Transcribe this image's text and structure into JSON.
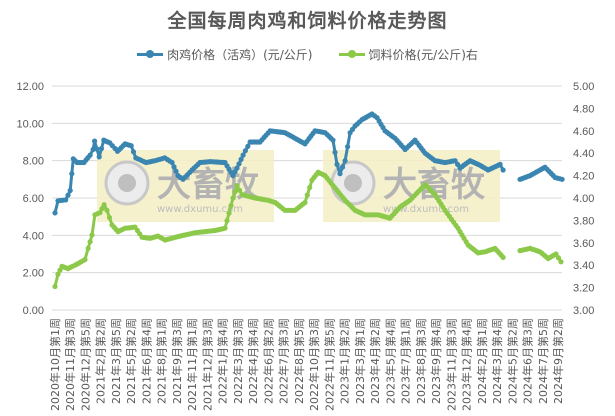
{
  "chart_data": {
    "type": "line",
    "title": "全国每周肉鸡和饲料价格走势图",
    "xlabel": "",
    "ylabel": "",
    "y_left": {
      "ticks": [
        "0.00",
        "2.00",
        "4.00",
        "6.00",
        "8.00",
        "10.00",
        "12.00"
      ],
      "range": [
        0,
        12
      ]
    },
    "y_right": {
      "ticks": [
        "3.00",
        "3.20",
        "3.40",
        "3.60",
        "3.80",
        "4.00",
        "4.20",
        "4.40",
        "4.60",
        "4.80",
        "5.00"
      ],
      "range": [
        3,
        5
      ]
    },
    "grid": true,
    "legend_position": "top",
    "categories": [
      "2020年10月第1周",
      "2020年11月第3周",
      "2020年12月第5周",
      "2021年2月第2周",
      "2021年3月第5周",
      "2021年5月第2周",
      "2021年6月第4周",
      "2021年8月第1周",
      "2021年9月第3周",
      "2021年11月第1周",
      "2021年12月第3周",
      "2022年1月第4周",
      "2022年3月第3周",
      "2022年4月第4周",
      "2022年6月第2周",
      "2022年7月第3周",
      "2022年8月第5周",
      "2022年10月第3周",
      "2022年11月第5周",
      "2023年1月第2周",
      "2023年3月第1周",
      "2023年4月第2周",
      "2023年5月第4周",
      "2023年7月第1周",
      "2023年8月第3周",
      "2023年9月第4周",
      "2023年11月第3周",
      "2023年12月第4周",
      "2024年2月第1周",
      "2024年3月第4周",
      "2024年5月第2周",
      "2024年6月第3周",
      "2024年7月第5周",
      "2024年9月第2周"
    ],
    "series": [
      {
        "name": "肉鸡价格（活鸡）(元/公斤)",
        "axis": "left",
        "color": "#3b86b0",
        "points_note": "[position in category units, value]; null splits segments",
        "points": [
          [
            0,
            5.2
          ],
          [
            0.2,
            5.85
          ],
          [
            0.7,
            5.9
          ],
          [
            1.0,
            6.4
          ],
          [
            1.1,
            7.3
          ],
          [
            1.2,
            8.1
          ],
          [
            1.45,
            7.9
          ],
          [
            1.9,
            7.9
          ],
          [
            2.3,
            8.3
          ],
          [
            2.5,
            8.6
          ],
          [
            2.6,
            9.05
          ],
          [
            2.9,
            8.2
          ],
          [
            3.2,
            9.1
          ],
          [
            3.6,
            8.95
          ],
          [
            4.1,
            8.5
          ],
          [
            4.6,
            8.9
          ],
          [
            5.0,
            8.8
          ],
          [
            5.3,
            8.15
          ],
          [
            5.97,
            7.9
          ],
          [
            6.56,
            8.0
          ],
          [
            7.2,
            8.15
          ],
          [
            7.68,
            7.9
          ],
          [
            8.07,
            7.2
          ],
          [
            8.4,
            7.0
          ],
          [
            8.99,
            7.5
          ],
          [
            9.51,
            7.9
          ],
          [
            10.17,
            7.95
          ],
          [
            11.15,
            7.9
          ],
          [
            11.68,
            7.2
          ],
          [
            11.94,
            7.6
          ],
          [
            12.34,
            8.3
          ],
          [
            12.8,
            9.0
          ],
          [
            13.45,
            9.0
          ],
          [
            14.11,
            9.6
          ],
          [
            15.09,
            9.5
          ],
          [
            15.75,
            9.2
          ],
          [
            16.4,
            8.9
          ],
          [
            17.06,
            9.6
          ],
          [
            17.72,
            9.5
          ],
          [
            18.24,
            9.1
          ],
          [
            18.5,
            7.8
          ],
          [
            18.7,
            7.3
          ],
          [
            19.03,
            8.0
          ],
          [
            19.36,
            9.5
          ],
          [
            19.68,
            9.85
          ],
          [
            20.14,
            10.2
          ],
          [
            20.8,
            10.5
          ],
          [
            21.13,
            10.3
          ],
          [
            21.65,
            9.6
          ],
          [
            22.31,
            9.2
          ],
          [
            22.97,
            8.6
          ],
          [
            23.62,
            9.1
          ],
          [
            24.28,
            8.4
          ],
          [
            24.93,
            8.0
          ],
          [
            25.59,
            7.9
          ],
          [
            26.25,
            8.0
          ],
          [
            26.57,
            7.6
          ],
          [
            27.23,
            8.0
          ],
          [
            27.89,
            7.75
          ],
          [
            28.41,
            7.5
          ],
          [
            29.2,
            7.8
          ],
          [
            29.4,
            7.5
          ],
          null,
          [
            30.51,
            7.0
          ],
          [
            31.17,
            7.2
          ],
          [
            32.15,
            7.65
          ],
          [
            32.81,
            7.1
          ],
          [
            33.27,
            7.0
          ]
        ]
      },
      {
        "name": "饲料价格(元/公斤)右",
        "axis": "right",
        "color": "#8cc94a",
        "points": [
          [
            0,
            3.21
          ],
          [
            0.2,
            3.32
          ],
          [
            0.46,
            3.39
          ],
          [
            0.85,
            3.37
          ],
          [
            1.31,
            3.4
          ],
          [
            1.97,
            3.45
          ],
          [
            2.17,
            3.55
          ],
          [
            2.43,
            3.67
          ],
          [
            2.62,
            3.85
          ],
          [
            2.95,
            3.87
          ],
          [
            3.22,
            3.94
          ],
          [
            3.41,
            3.89
          ],
          [
            3.74,
            3.76
          ],
          [
            4.13,
            3.7
          ],
          [
            4.59,
            3.73
          ],
          [
            5.25,
            3.74
          ],
          [
            5.71,
            3.65
          ],
          [
            6.23,
            3.64
          ],
          [
            6.76,
            3.66
          ],
          [
            7.22,
            3.625
          ],
          [
            8.2,
            3.66
          ],
          [
            9.19,
            3.69
          ],
          [
            10.5,
            3.71
          ],
          [
            11.15,
            3.73
          ],
          [
            11.68,
            4.0
          ],
          [
            11.94,
            4.11
          ],
          [
            12.27,
            4.03
          ],
          [
            13.12,
            4.0
          ],
          [
            13.98,
            3.98
          ],
          [
            14.44,
            3.96
          ],
          [
            15.09,
            3.89
          ],
          [
            15.75,
            3.89
          ],
          [
            16.4,
            3.96
          ],
          [
            16.86,
            4.16
          ],
          [
            17.26,
            4.23
          ],
          [
            17.72,
            4.2
          ],
          [
            18.37,
            4.09
          ],
          [
            19.03,
            3.98
          ],
          [
            19.69,
            3.89
          ],
          [
            20.34,
            3.85
          ],
          [
            21.19,
            3.85
          ],
          [
            21.98,
            3.82
          ],
          [
            22.64,
            3.92
          ],
          [
            23.29,
            3.98
          ],
          [
            24.28,
            4.12
          ],
          [
            24.93,
            4.03
          ],
          [
            25.59,
            3.89
          ],
          [
            26.44,
            3.73
          ],
          [
            27.1,
            3.58
          ],
          [
            27.76,
            3.51
          ],
          [
            28.22,
            3.52
          ],
          [
            28.87,
            3.55
          ],
          [
            29.4,
            3.47
          ],
          null,
          [
            30.51,
            3.53
          ],
          [
            31.17,
            3.55
          ],
          [
            31.82,
            3.52
          ],
          [
            32.35,
            3.46
          ],
          [
            32.87,
            3.5
          ],
          [
            33.2,
            3.43
          ]
        ]
      }
    ]
  },
  "legend": [
    {
      "label": "肉鸡价格（活鸡）(元/公斤)",
      "color": "#3b86b0"
    },
    {
      "label": "饲料价格(元/公斤)右",
      "color": "#8cc94a"
    }
  ],
  "watermark": {
    "brand": "大畜牧",
    "url": "www.dxumu.com"
  }
}
